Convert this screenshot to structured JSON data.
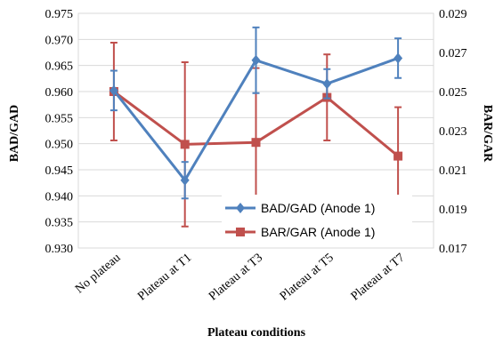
{
  "chart_data": {
    "type": "line",
    "categories": [
      "No plateau",
      "Plateau at T1",
      "Plateau at T3",
      "Plateau at T5",
      "Plateau at T7"
    ],
    "xlabel": "Plateau conditions",
    "ylabel": "BAD/GAD",
    "y2label": "BAR/GAR",
    "ylim": [
      0.93,
      0.975
    ],
    "y2lim": [
      0.017,
      0.029
    ],
    "yticks": [
      "0.930",
      "0.935",
      "0.940",
      "0.945",
      "0.950",
      "0.955",
      "0.960",
      "0.965",
      "0.970",
      "0.975"
    ],
    "y2ticks": [
      "0.017",
      "0.019",
      "0.021",
      "0.023",
      "0.025",
      "0.027",
      "0.029"
    ],
    "grid": "horizontal",
    "legend_position": "bottom-right",
    "series": [
      {
        "name": "BAD/GAD (Anode 1)",
        "axis": "left",
        "color": "#4F81BD",
        "marker": "diamond",
        "values": [
          0.9602,
          0.943,
          0.966,
          0.9615,
          0.9664
        ],
        "error": [
          0.0038,
          0.0035,
          0.0063,
          0.0028,
          0.0038
        ]
      },
      {
        "name": "BAR/GAR (Anode 1)",
        "axis": "right",
        "color": "#C0504D",
        "marker": "square",
        "values": [
          0.025,
          0.0223,
          0.0224,
          0.0247,
          0.0217
        ],
        "error": [
          0.0025,
          0.0042,
          0.0038,
          0.0022,
          0.0025
        ]
      }
    ]
  }
}
